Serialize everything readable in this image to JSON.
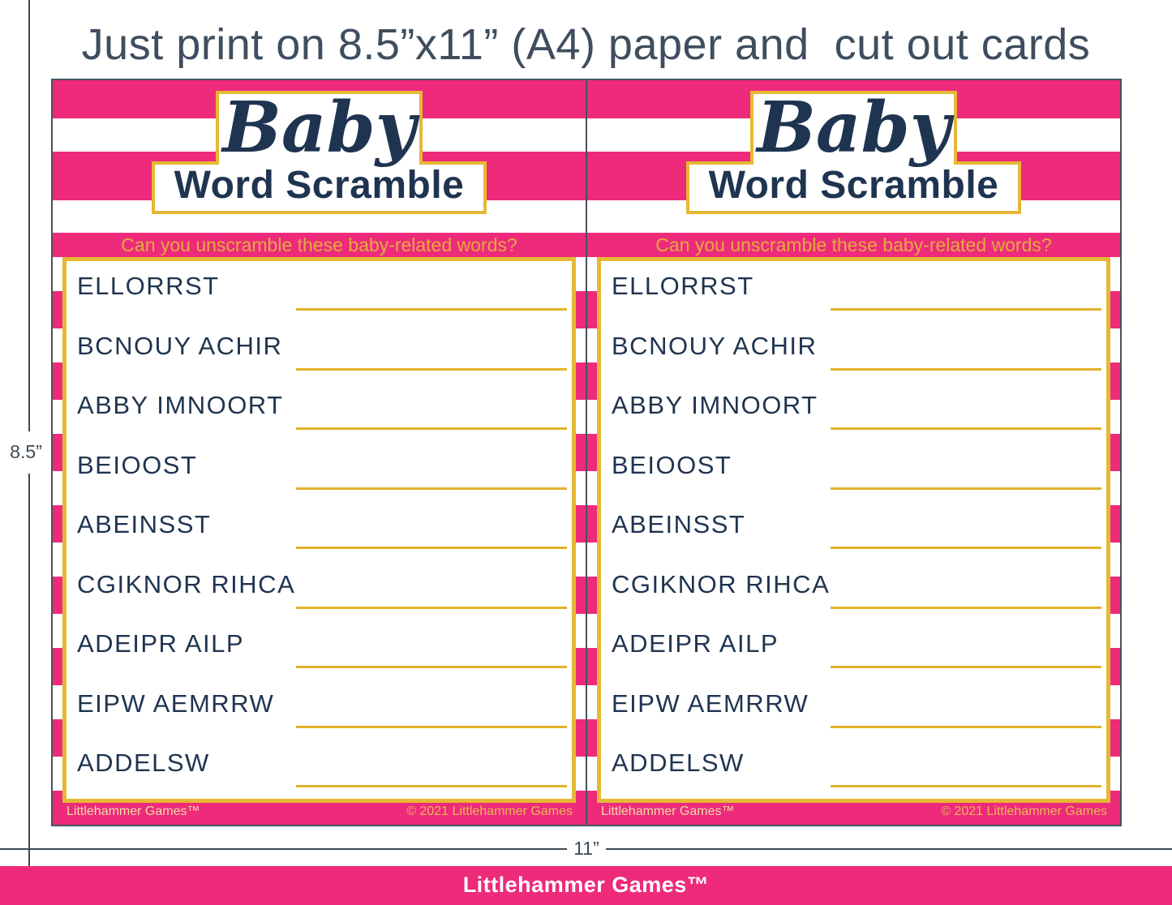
{
  "page": {
    "title": "Just print on 8.5”x11” (A4) paper and  cut out cards",
    "dimension_labels": {
      "height": "8.5”",
      "width": "11”"
    },
    "footer": {
      "brand": "Littlehammer Games™"
    }
  },
  "card": {
    "title_script": "Baby",
    "title_main": "Word Scramble",
    "subtitle": "Can you unscramble these baby-related words?",
    "words": [
      "ELLORRST",
      "BCNOUY ACHIR",
      "ABBY IMNOORT",
      "BEIOOST",
      "ABEINSST",
      "CGIKNOR RIHCA",
      "ADEIPR AILP",
      "EIPW AEMRRW",
      "ADDELSW"
    ],
    "footer_left": "Littlehammer Games™",
    "footer_right": "© 2021 Littlehammer Games"
  },
  "colors": {
    "pink": "#EE2A7B",
    "gold_border": "#E5B835",
    "gold_line": "#E3B22B",
    "gold_text": "#E3AC3C",
    "navy": "#1F3450",
    "slate": "#3E4A55",
    "white": "#FFFFFF"
  }
}
